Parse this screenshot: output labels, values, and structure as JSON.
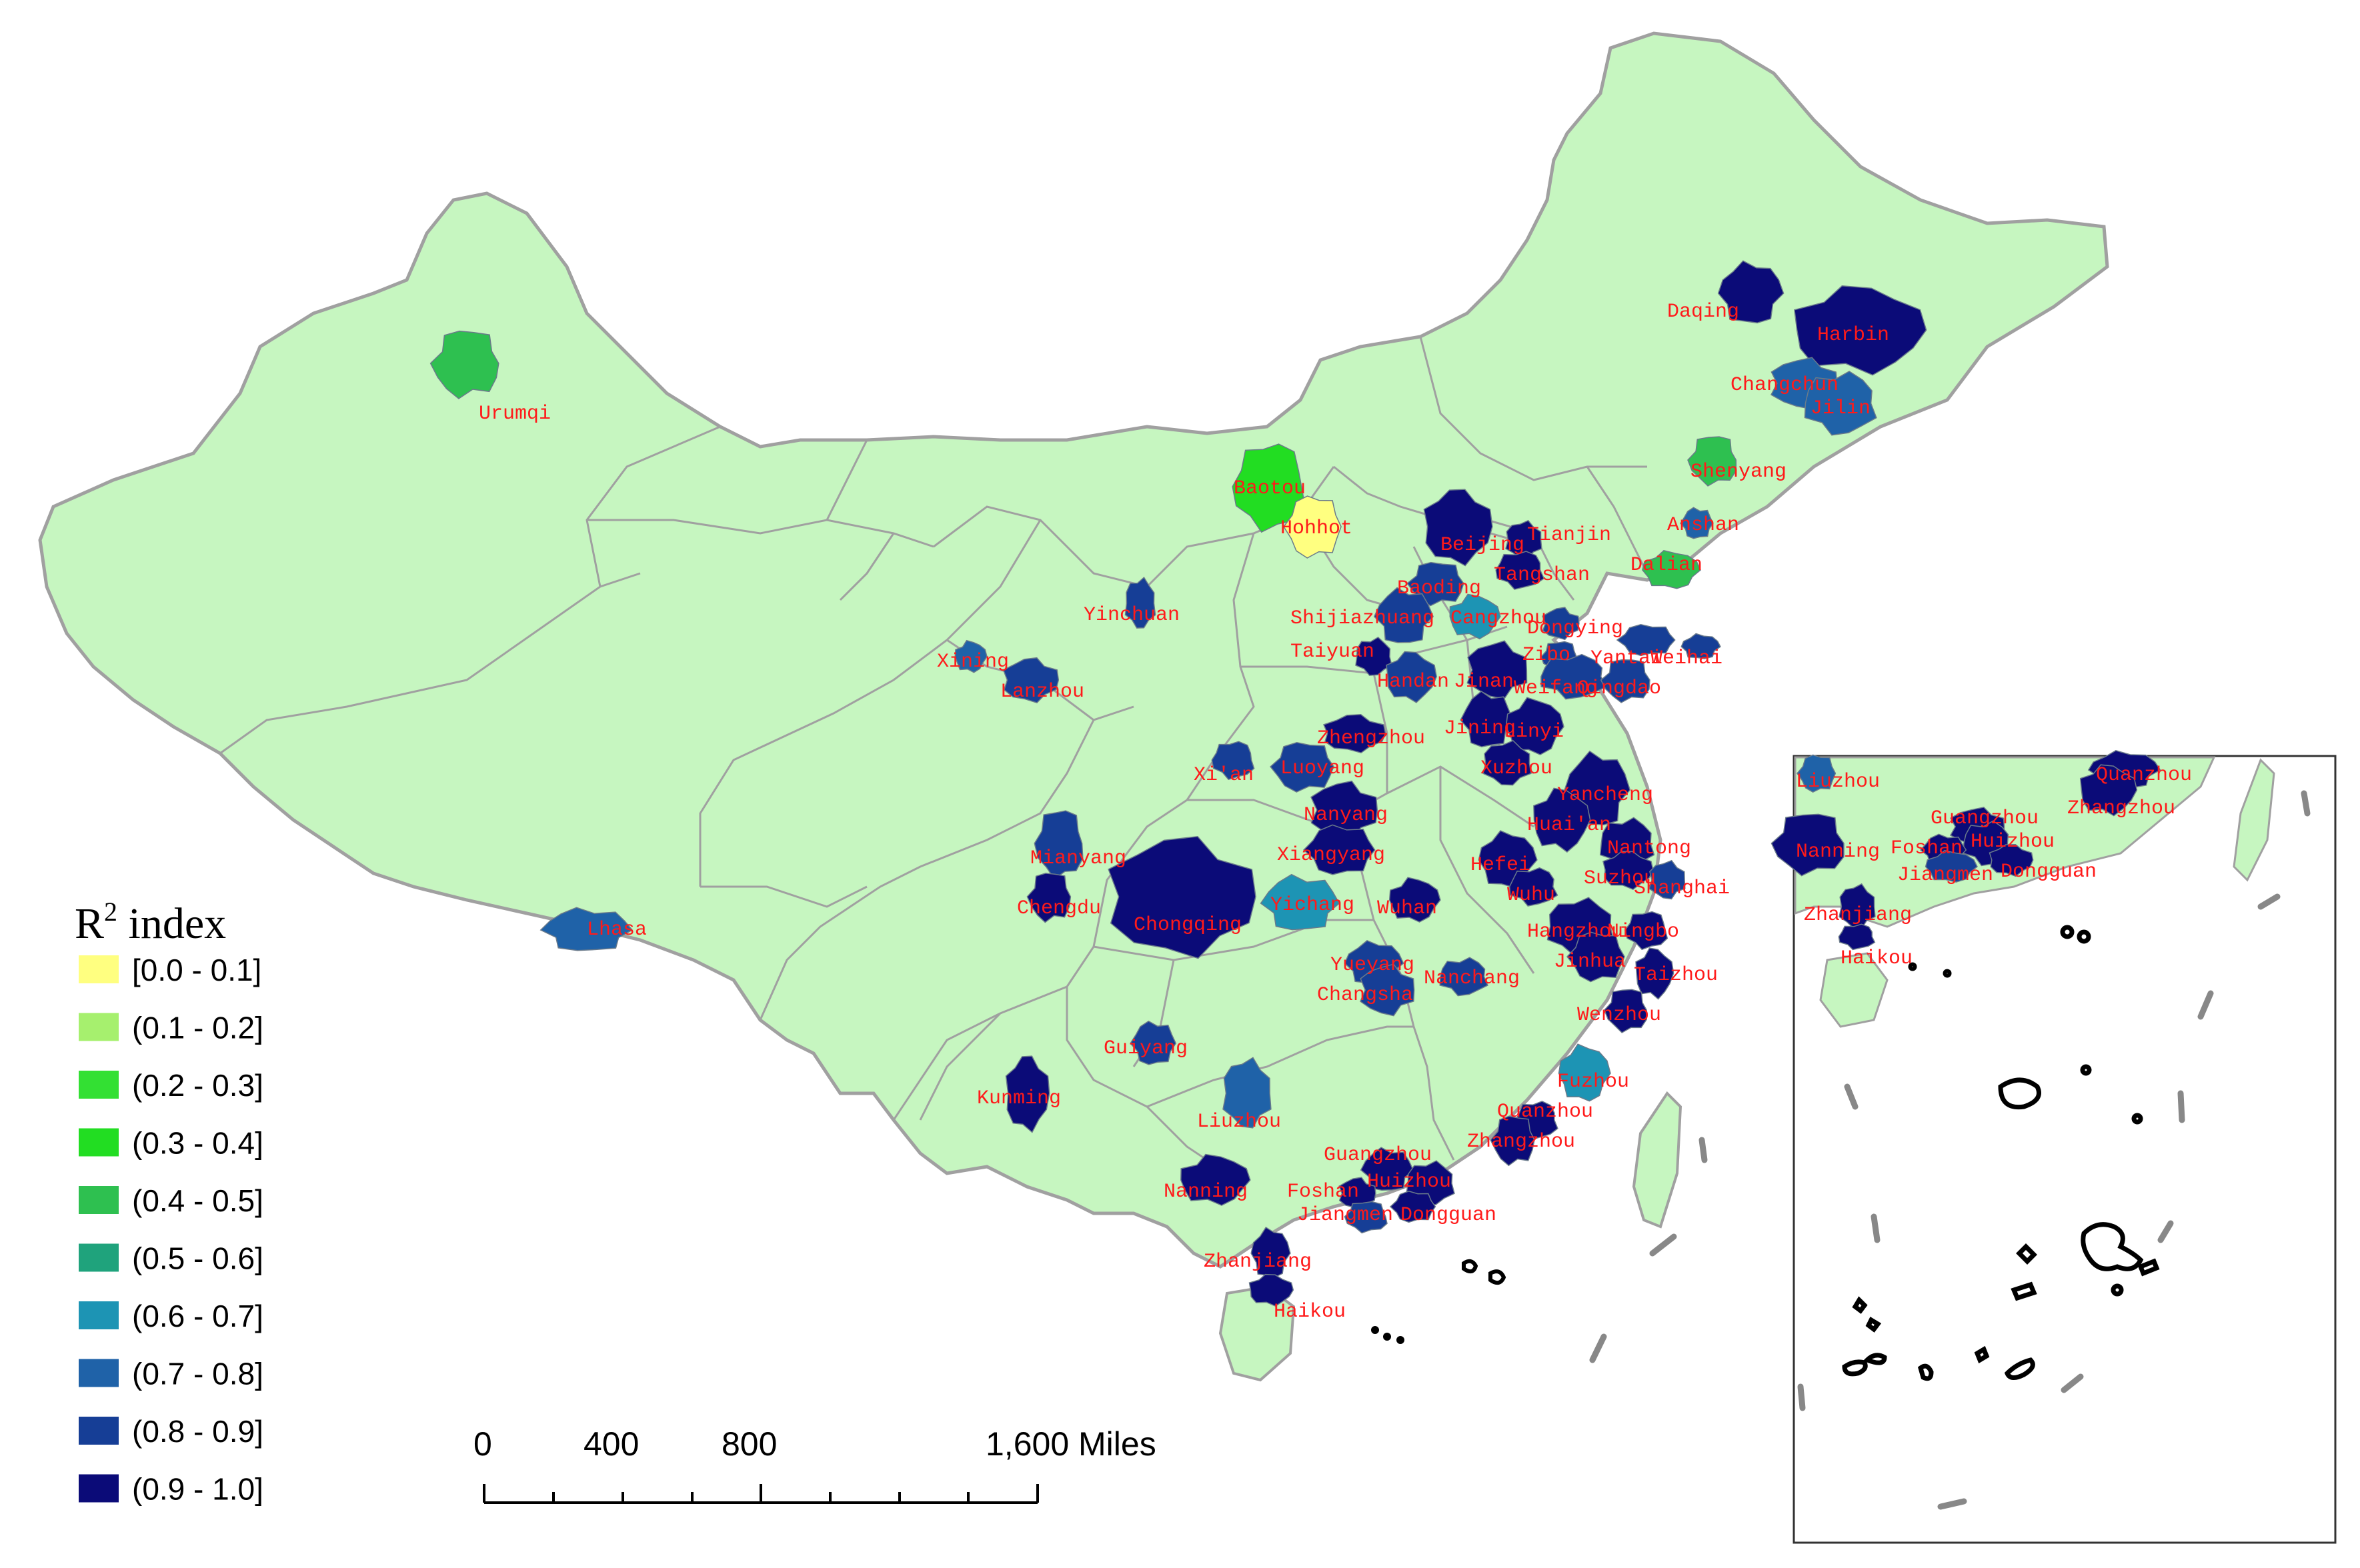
{
  "colors": {
    "land": "#c6f6c0",
    "border": "#a0a0a0",
    "label": "#ff1a1a",
    "classes": [
      "#ffff80",
      "#a6f06e",
      "#33e033",
      "#22dd22",
      "#2ec050",
      "#1fa37c",
      "#1d94b4",
      "#1f62a8",
      "#163e96",
      "#0b0b78"
    ]
  },
  "legend": {
    "title_main": "R",
    "title_sup": "2",
    "title_rest": " index",
    "classes": [
      "[0.0 - 0.1]",
      "(0.1 - 0.2]",
      "(0.2 - 0.3]",
      "(0.3 - 0.4]",
      "(0.4 - 0.5]",
      "(0.5 - 0.6]",
      "(0.6 - 0.7]",
      "(0.7 - 0.8]",
      "(0.8 - 0.9]",
      "(0.9 - 1.0]"
    ]
  },
  "scale_bar": {
    "ticks": [
      "0",
      "400",
      "800",
      "1,600 Miles"
    ]
  },
  "cities": [
    {
      "name": "Urumqi",
      "class": 4
    },
    {
      "name": "Lhasa",
      "class": 7
    },
    {
      "name": "Xining",
      "class": 7
    },
    {
      "name": "Lanzhou",
      "class": 8
    },
    {
      "name": "Yinchuan",
      "class": 8
    },
    {
      "name": "Baotou",
      "class": 3
    },
    {
      "name": "Hohhot",
      "class": 0
    },
    {
      "name": "Daqing",
      "class": 9
    },
    {
      "name": "Harbin",
      "class": 9
    },
    {
      "name": "Changchun",
      "class": 7
    },
    {
      "name": "Jilin",
      "class": 7
    },
    {
      "name": "Shenyang",
      "class": 4
    },
    {
      "name": "Anshan",
      "class": 7
    },
    {
      "name": "Dalian",
      "class": 4
    },
    {
      "name": "Beijing",
      "class": 9
    },
    {
      "name": "Tianjin",
      "class": 9
    },
    {
      "name": "Tangshan",
      "class": 9
    },
    {
      "name": "Baoding",
      "class": 8
    },
    {
      "name": "Shijiazhuang",
      "class": 8
    },
    {
      "name": "Cangzhou",
      "class": 6
    },
    {
      "name": "Dongying",
      "class": 8
    },
    {
      "name": "Taiyuan",
      "class": 9
    },
    {
      "name": "Zibo",
      "class": 8
    },
    {
      "name": "Yantai",
      "class": 8
    },
    {
      "name": "Weihai",
      "class": 8
    },
    {
      "name": "Handan",
      "class": 8
    },
    {
      "name": "Jinan",
      "class": 9
    },
    {
      "name": "Weifang",
      "class": 8
    },
    {
      "name": "Qingdao",
      "class": 8
    },
    {
      "name": "Jining",
      "class": 9
    },
    {
      "name": "Linyi",
      "class": 9
    },
    {
      "name": "Zhengzhou",
      "class": 9
    },
    {
      "name": "Xuzhou",
      "class": 9
    },
    {
      "name": "Xi'an",
      "class": 8
    },
    {
      "name": "Luoyang",
      "class": 8
    },
    {
      "name": "Yancheng",
      "class": 9
    },
    {
      "name": "Huai'an",
      "class": 9
    },
    {
      "name": "Nanyang",
      "class": 9
    },
    {
      "name": "Nantong",
      "class": 9
    },
    {
      "name": "Mianyang",
      "class": 8
    },
    {
      "name": "Xiangyang",
      "class": 9
    },
    {
      "name": "Hefei",
      "class": 9
    },
    {
      "name": "Suzhou",
      "class": 9
    },
    {
      "name": "Shanghai",
      "class": 8
    },
    {
      "name": "Wuhu",
      "class": 9
    },
    {
      "name": "Chengdu",
      "class": 9
    },
    {
      "name": "Yichang",
      "class": 6
    },
    {
      "name": "Wuhan",
      "class": 9
    },
    {
      "name": "Chongqing",
      "class": 9
    },
    {
      "name": "Hangzhou",
      "class": 9
    },
    {
      "name": "Ningbo",
      "class": 9
    },
    {
      "name": "Jinhua",
      "class": 9
    },
    {
      "name": "Yueyang",
      "class": 8
    },
    {
      "name": "Taizhou",
      "class": 9
    },
    {
      "name": "Changsha",
      "class": 8
    },
    {
      "name": "Nanchang",
      "class": 8
    },
    {
      "name": "Wenzhou",
      "class": 9
    },
    {
      "name": "Guiyang",
      "class": 8
    },
    {
      "name": "Fuzhou",
      "class": 6
    },
    {
      "name": "Kunming",
      "class": 9
    },
    {
      "name": "Liuzhou",
      "class": 7
    },
    {
      "name": "Quanzhou",
      "class": 9
    },
    {
      "name": "Zhangzhou",
      "class": 9
    },
    {
      "name": "Guangzhou",
      "class": 9
    },
    {
      "name": "Nanning",
      "class": 9
    },
    {
      "name": "Foshan",
      "class": 9
    },
    {
      "name": "Huizhou",
      "class": 9
    },
    {
      "name": "Jiangmen",
      "class": 8
    },
    {
      "name": "Dongguan",
      "class": 9
    },
    {
      "name": "Zhanjiang",
      "class": 9
    },
    {
      "name": "Haikou",
      "class": 9
    }
  ],
  "inset_labels": [
    "Liuzhou",
    "Quanzhou",
    "Zhangzhou",
    "Guangzhou",
    "Huizhou",
    "Nanning",
    "Foshan",
    "Jiangmen",
    "Dongguan",
    "Zhanjiang",
    "Haikou"
  ]
}
